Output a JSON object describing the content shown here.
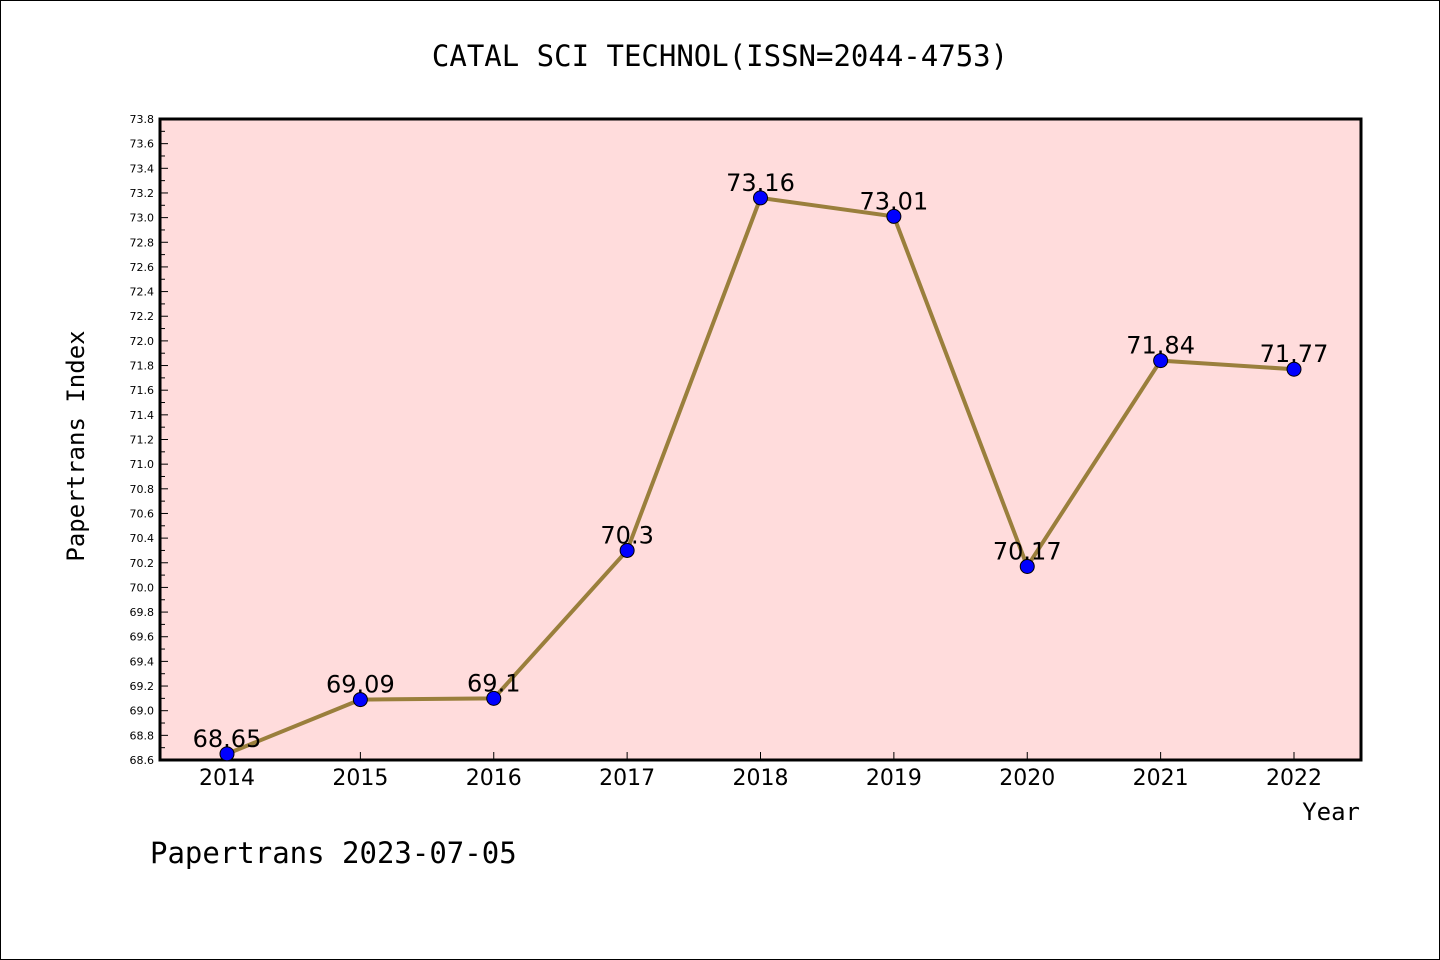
{
  "chart_data": {
    "type": "line",
    "title": "CATAL SCI TECHNOL(ISSN=2044-4753)",
    "xlabel": "Year",
    "ylabel": "Papertrans Index",
    "categories": [
      "2014",
      "2015",
      "2016",
      "2017",
      "2018",
      "2019",
      "2020",
      "2021",
      "2022"
    ],
    "values": [
      68.65,
      69.09,
      69.1,
      70.3,
      73.16,
      73.01,
      70.17,
      71.84,
      71.77
    ],
    "data_labels": [
      "68.65",
      "69.09",
      "69.1",
      "70.3",
      "73.16",
      "73.01",
      "70.17",
      "71.84",
      "71.77"
    ],
    "ylim": [
      68.6,
      73.8
    ],
    "yticks": [
      "68.6",
      "68.8",
      "69.0",
      "69.2",
      "69.4",
      "69.6",
      "69.8",
      "70.0",
      "70.2",
      "70.4",
      "70.6",
      "70.8",
      "71.0",
      "71.2",
      "71.4",
      "71.6",
      "71.8",
      "72.0",
      "72.2",
      "72.4",
      "72.6",
      "72.8",
      "73.0",
      "73.2",
      "73.4",
      "73.6",
      "73.8"
    ],
    "grid": false,
    "legend": "none",
    "plot_background": "#ffdcdc",
    "line_color": "#9a7f3c",
    "marker_color": "#0000ff"
  },
  "footer": "Papertrans 2023-07-05"
}
